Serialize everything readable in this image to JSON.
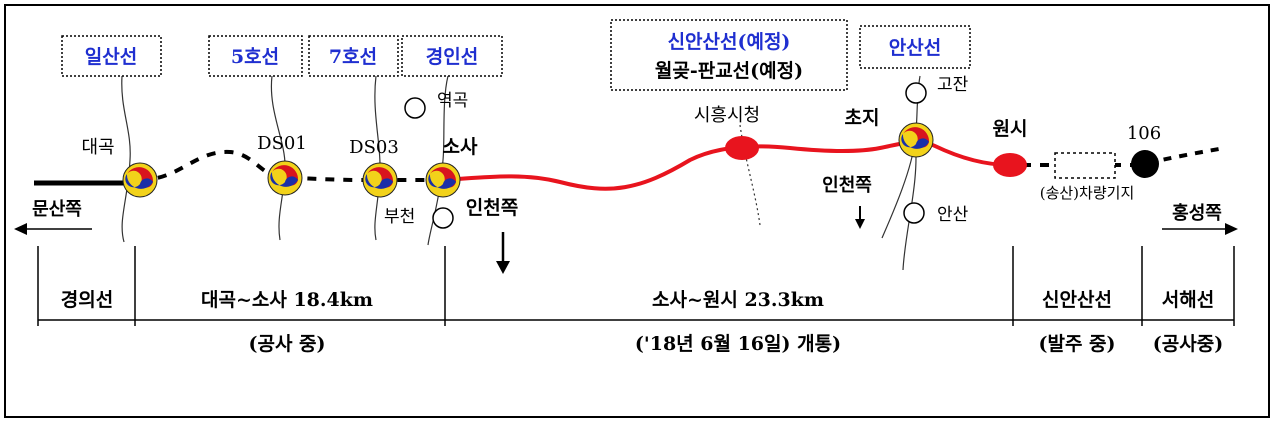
{
  "line_boxes": [
    {
      "id": "ilsan",
      "text": "일산선"
    },
    {
      "id": "line5",
      "text": "5호선"
    },
    {
      "id": "line7",
      "text": "7호선"
    },
    {
      "id": "gyeongin",
      "text": "경인선"
    },
    {
      "id": "sinansan",
      "text": "신안산선(예정)",
      "text2": "월곶-판교선(예정)"
    },
    {
      "id": "ansan",
      "text": "안산선"
    }
  ],
  "stations": {
    "daegok": "대곡",
    "ds01": "DS01",
    "ds03": "DS03",
    "sosa": "소사",
    "yeokgok": "역곡",
    "bucheon": "부천",
    "siheung_city_hall": "시흥시청",
    "choji": "초지",
    "gojan": "고잔",
    "ansan": "안산",
    "wonsi": "원시",
    "s106": "106"
  },
  "directions": {
    "munsan": "문산쪽",
    "incheon1": "인천쪽",
    "incheon2": "인천쪽",
    "hongseong": "홍성쪽"
  },
  "depot": "(송산)차량기지",
  "segments": [
    {
      "id": "gyeongui",
      "name": "경의선",
      "status": ""
    },
    {
      "id": "daegok_sosa",
      "name": "대곡~소사 18.4km",
      "status": "(공사 중)"
    },
    {
      "id": "sosa_wonsi",
      "name": "소사~원시 23.3km",
      "status": "('18년 6월 16일) 개통)"
    },
    {
      "id": "sinansan",
      "name": "신안산선",
      "status": "(발주 중)"
    },
    {
      "id": "seohae",
      "name": "서해선",
      "status": "(공사중)"
    }
  ],
  "colors": {
    "line_blue": "#1f2fd0",
    "open_red": "#e8141e",
    "taeguk_red": "#d8141e",
    "taeguk_blue": "#1a2fa8",
    "taeguk_yellow": "#f2d21a"
  }
}
